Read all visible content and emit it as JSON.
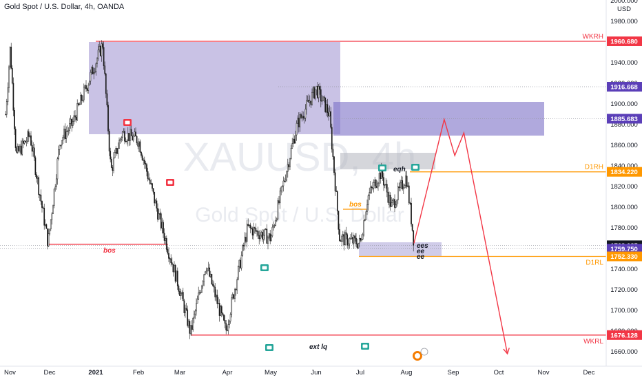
{
  "header": {
    "title": "Gold Spot / U.S. Dollar, 4h, OANDA"
  },
  "watermark": {
    "symbol": "XAUUSD, 4h",
    "description": "Gold Spot / U.S. Dollar"
  },
  "colors": {
    "candle": "#1a1a1a",
    "red_line": "#f23645",
    "orange_line": "#ff9800",
    "zone_fill": "#9c8fd0",
    "grey_zone": "#b2b5be",
    "purple_tag": "#5b3fb8",
    "dark_tag": "#131722",
    "dotted": "#9598a1"
  },
  "chart_data": {
    "type": "line",
    "instrument": "XAUUSD",
    "timeframe": "4h",
    "currency": "USD",
    "x_ticks": [
      "Nov",
      "Dec",
      "2021",
      "Feb",
      "Mar",
      "Apr",
      "May",
      "Jun",
      "Jul",
      "Aug",
      "Sep",
      "Oct",
      "Nov",
      "Dec"
    ],
    "y_ticks": [
      2000,
      1980,
      1960,
      1940,
      1920,
      1900,
      1880,
      1860,
      1840,
      1820,
      1800,
      1780,
      1760,
      1740,
      1720,
      1700,
      1680,
      1660
    ],
    "y_tick_labels": [
      "2000.000",
      "1980.000",
      "1960.000",
      "1940.000",
      "1920.000",
      "1900.000",
      "1880.000",
      "1860.000",
      "1840.000",
      "1820.000",
      "1800.000",
      "1780.000",
      "1760.000",
      "1740.000",
      "1720.000",
      "1700.000",
      "1680.000",
      "1660.000"
    ],
    "ylim": [
      1654,
      2003
    ],
    "price_path_approx": [
      [
        "2020-11-02",
        1890
      ],
      [
        "2020-11-05",
        1955
      ],
      [
        "2020-11-09",
        1850
      ],
      [
        "2020-11-18",
        1870
      ],
      [
        "2020-11-30",
        1765
      ],
      [
        "2020-12-08",
        1865
      ],
      [
        "2020-12-16",
        1880
      ],
      [
        "2021-01-06",
        1958
      ],
      [
        "2021-01-12",
        1835
      ],
      [
        "2021-01-20",
        1872
      ],
      [
        "2021-02-01",
        1865
      ],
      [
        "2021-02-15",
        1790
      ],
      [
        "2021-03-01",
        1720
      ],
      [
        "2021-03-08",
        1678
      ],
      [
        "2021-03-18",
        1745
      ],
      [
        "2021-03-31",
        1680
      ],
      [
        "2021-04-15",
        1780
      ],
      [
        "2021-05-01",
        1770
      ],
      [
        "2021-05-19",
        1880
      ],
      [
        "2021-06-01",
        1915
      ],
      [
        "2021-06-10",
        1890
      ],
      [
        "2021-06-17",
        1770
      ],
      [
        "2021-07-01",
        1765
      ],
      [
        "2021-07-06",
        1810
      ],
      [
        "2021-07-15",
        1834
      ],
      [
        "2021-07-22",
        1800
      ],
      [
        "2021-08-01",
        1830
      ],
      [
        "2021-08-06",
        1765
      ]
    ],
    "projection": [
      [
        "2021-08-06",
        1765
      ],
      [
        "2021-08-26",
        1885
      ],
      [
        "2021-09-02",
        1850
      ],
      [
        "2021-09-08",
        1872
      ],
      [
        "2021-10-07",
        1658
      ]
    ],
    "levels": [
      {
        "label": "WKRH",
        "value": 1960.68,
        "value_label": "1960.680"
      },
      {
        "label": "",
        "value": 1916.668,
        "value_label": "1916.668"
      },
      {
        "label": "",
        "value": 1885.683,
        "value_label": "1885.683"
      },
      {
        "label": "D1RH",
        "value": 1834.22,
        "value_label": "1834.220"
      },
      {
        "label": "",
        "value": 1763.085,
        "value_label": "1763.085"
      },
      {
        "label": "",
        "value": 1759.75,
        "value_label": "1759.750"
      },
      {
        "label": "D1RL",
        "value": 1752.33,
        "value_label": "1752.330"
      },
      {
        "label": "WKRL",
        "value": 1676.128,
        "value_label": "1676.128"
      }
    ],
    "annotations": [
      "bos",
      "bos",
      "eqh",
      "ext lq",
      "ees",
      "ee",
      "ee"
    ],
    "title": "",
    "xlabel": "",
    "ylabel": "",
    "grid": false,
    "legend": "none"
  }
}
